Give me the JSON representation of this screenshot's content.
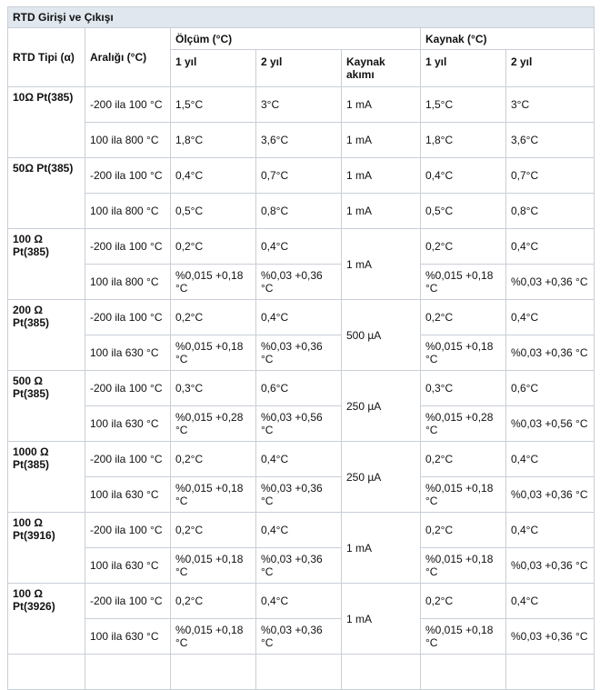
{
  "title": "RTD Girişi ve Çıkışı",
  "headers": {
    "type": "RTD Tipi (α)",
    "range": "Aralığı (°C)",
    "measure": "Ölçüm (°C)",
    "source": "Kaynak (°C)",
    "y1": "1 yıl",
    "y2": "2 yıl",
    "current": "Kaynak akımı"
  },
  "groups": [
    {
      "type": "10Ω Pt(385)",
      "rows": [
        {
          "range": "-200 ila 100 °C",
          "m1": "1,5°C",
          "m2": "3°C",
          "cur": "1 mA",
          "s1": "1,5°C",
          "s2": "3°C"
        },
        {
          "range": "100 ila 800 °C",
          "m1": "1,8°C",
          "m2": "3,6°C",
          "cur": "1 mA",
          "s1": "1,8°C",
          "s2": "3,6°C"
        }
      ]
    },
    {
      "type": "50Ω Pt(385)",
      "rows": [
        {
          "range": "-200 ila 100 °C",
          "m1": "0,4°C",
          "m2": "0,7°C",
          "cur": "1 mA",
          "s1": "0,4°C",
          "s2": "0,7°C"
        },
        {
          "range": "100 ila 800 °C",
          "m1": "0,5°C",
          "m2": "0,8°C",
          "cur": "1 mA",
          "s1": "0,5°C",
          "s2": "0,8°C"
        }
      ]
    },
    {
      "type": "100 Ω Pt(385)",
      "current": "1 mA",
      "rows": [
        {
          "range": "-200 ila 100 °C",
          "m1": "0,2°C",
          "m2": "0,4°C",
          "s1": "0,2°C",
          "s2": "0,4°C"
        },
        {
          "range": "100 ila 800 °C",
          "m1": "%0,015 +0,18 °C",
          "m2": "%0,03 +0,36 °C",
          "s1": "%0,015 +0,18 °C",
          "s2": "%0,03 +0,36 °C"
        }
      ]
    },
    {
      "type": "200 Ω Pt(385)",
      "current": "500 µA",
      "rows": [
        {
          "range": "-200 ila 100 °C",
          "m1": "0,2°C",
          "m2": "0,4°C",
          "s1": "0,2°C",
          "s2": "0,4°C"
        },
        {
          "range": "100 ila 630 °C",
          "m1": "%0,015 +0,18 °C",
          "m2": "%0,03 +0,36 °C",
          "s1": "%0,015 +0,18 °C",
          "s2": "%0,03 +0,36 °C"
        }
      ]
    },
    {
      "type": "500 Ω Pt(385)",
      "current": "250 µA",
      "rows": [
        {
          "range": "-200 ila 100 °C",
          "m1": "0,3°C",
          "m2": "0,6°C",
          "s1": "0,3°C",
          "s2": "0,6°C"
        },
        {
          "range": "100 ila 630 °C",
          "m1": "%0,015 +0,28 °C",
          "m2": "%0,03 +0,56 °C",
          "s1": "%0,015 +0,28 °C",
          "s2": "%0,03 +0,56 °C"
        }
      ]
    },
    {
      "type": "1000 Ω Pt(385)",
      "current": "250 µA",
      "rows": [
        {
          "range": "-200 ila 100 °C",
          "m1": "0,2°C",
          "m2": "0,4°C",
          "s1": "0,2°C",
          "s2": "0,4°C"
        },
        {
          "range": "100 ila 630 °C",
          "m1": "%0,015 +0,18 °C",
          "m2": "%0,03 +0,36 °C",
          "s1": "%0,015 +0,18 °C",
          "s2": "%0,03 +0,36 °C"
        }
      ]
    },
    {
      "type": "100 Ω Pt(3916)",
      "current": "1 mA",
      "rows": [
        {
          "range": "-200 ila 100 °C",
          "m1": "0,2°C",
          "m2": "0,4°C",
          "s1": "0,2°C",
          "s2": "0,4°C"
        },
        {
          "range": "100 ila 630 °C",
          "m1": "%0,015 +0,18 °C",
          "m2": "%0,03 +0,36 °C",
          "s1": "%0,015 +0,18 °C",
          "s2": "%0,03 +0,36 °C"
        }
      ]
    },
    {
      "type": "100 Ω Pt(3926)",
      "current": "1 mA",
      "rows": [
        {
          "range": "-200 ila 100 °C",
          "m1": "0,2°C",
          "m2": "0,4°C",
          "s1": "0,2°C",
          "s2": "0,4°C"
        },
        {
          "range": "100 ila 630 °C",
          "m1": "%0,015 +0,18 °C",
          "m2": "%0,03 +0,36 °C",
          "s1": "%0,015 +0,18 °C",
          "s2": "%0,03 +0,36 °C"
        }
      ]
    }
  ]
}
